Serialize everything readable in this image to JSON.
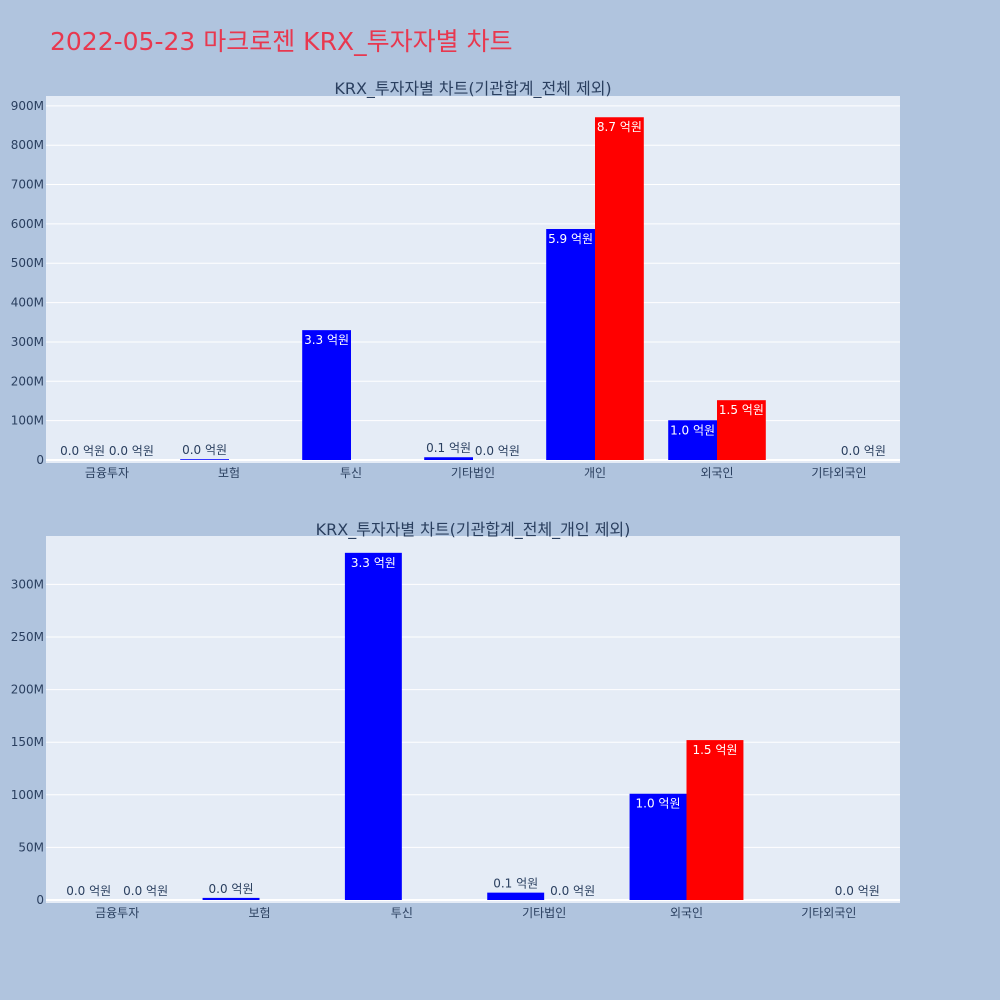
{
  "title": "2022-05-23 마크로젠 KRX_투자자별 차트",
  "unit_suffix": " 억원",
  "colors": {
    "buy": "#0000ff",
    "sell": "#ff0000",
    "plot_bg": "#e5ecf6",
    "page_bg": "#b0c4de",
    "title": "#e8384f"
  },
  "chart_data": [
    {
      "type": "bar",
      "title": "KRX_투자자별 차트(기관합계_전체 제외)",
      "categories": [
        "금융투자",
        "보험",
        "투신",
        "기타법인",
        "개인",
        "외국인",
        "기타외국인"
      ],
      "series": [
        {
          "color": "#0000ff",
          "values": [
            0,
            2000000,
            330000000,
            7000000,
            587000000,
            101000000,
            0
          ],
          "labels": [
            "0.0 억원",
            "0.0 억원",
            "3.3 억원",
            "0.1 억원",
            "5.9 억원",
            "1.0 억원",
            null
          ]
        },
        {
          "color": "#ff0000",
          "values": [
            0,
            0,
            0,
            0,
            871000000,
            152000000,
            0
          ],
          "labels": [
            "0.0 억원",
            null,
            null,
            "0.0 억원",
            "8.7 억원",
            "1.5 억원",
            "0.0 억원"
          ]
        }
      ],
      "yticks": [
        "0",
        "100M",
        "200M",
        "300M",
        "400M",
        "500M",
        "600M",
        "700M",
        "800M",
        "900M"
      ],
      "ylim": [
        0,
        925000000
      ],
      "grid": true
    },
    {
      "type": "bar",
      "title": "KRX_투자자별 차트(기관합계_전체_개인 제외)",
      "categories": [
        "금융투자",
        "보험",
        "투신",
        "기타법인",
        "외국인",
        "기타외국인"
      ],
      "series": [
        {
          "color": "#0000ff",
          "values": [
            0,
            2000000,
            330000000,
            7000000,
            101000000,
            0
          ],
          "labels": [
            "0.0 억원",
            "0.0 억원",
            "3.3 억원",
            "0.1 억원",
            "1.0 억원",
            null
          ]
        },
        {
          "color": "#ff0000",
          "values": [
            0,
            0,
            0,
            0,
            152000000,
            0
          ],
          "labels": [
            "0.0 억원",
            null,
            null,
            "0.0 억원",
            "1.5 억원",
            "0.0 억원"
          ]
        }
      ],
      "yticks": [
        "0",
        "50M",
        "100M",
        "150M",
        "200M",
        "250M",
        "300M"
      ],
      "ylim": [
        0,
        346000000
      ],
      "grid": true
    }
  ]
}
